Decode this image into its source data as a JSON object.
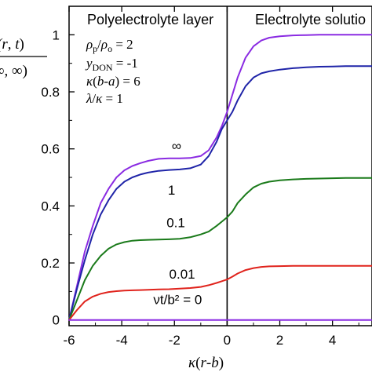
{
  "chart_data": {
    "type": "line",
    "title": "",
    "xlabel": "κ(r-b)",
    "ylabel": "(r, t)\n∞, ∞)",
    "xlim": [
      -6,
      5.5
    ],
    "ylim": [
      -0.02,
      1.1
    ],
    "xticks": [
      -6,
      -4,
      -2,
      0,
      2,
      4
    ],
    "xtick_labels": [
      "-6",
      "-4",
      "-2",
      "0",
      "2",
      "4"
    ],
    "yticks": [
      0,
      0.2,
      0.4,
      0.6,
      0.8,
      1
    ],
    "ytick_labels": [
      "0",
      "0.2",
      "0.4",
      "0.6",
      "0.8",
      "1"
    ],
    "grid": false,
    "regions": [
      "Polyelectrolyte layer",
      "Electrolyte solutio"
    ],
    "boundary_x": 0,
    "parameters": [
      "ρp/ρo = 2",
      "yDON = -1",
      "κ(b-a) = 6",
      "λ/κ = 1"
    ],
    "series": [
      {
        "name": "∞",
        "color": "#8a2be2",
        "x": [
          -6,
          -5.7,
          -5.4,
          -5.1,
          -4.8,
          -4.5,
          -4.2,
          -3.9,
          -3.6,
          -3.3,
          -3,
          -2.6,
          -2.2,
          -1.8,
          -1.4,
          -1,
          -0.7,
          -0.4,
          -0.2,
          0,
          0.2,
          0.4,
          0.7,
          1,
          1.3,
          1.6,
          2,
          2.5,
          3,
          3.5,
          4,
          4.5,
          5,
          5.5
        ],
        "y": [
          0,
          0.12,
          0.24,
          0.33,
          0.41,
          0.46,
          0.5,
          0.525,
          0.54,
          0.55,
          0.558,
          0.565,
          0.567,
          0.567,
          0.568,
          0.575,
          0.595,
          0.64,
          0.68,
          0.73,
          0.79,
          0.85,
          0.92,
          0.96,
          0.98,
          0.99,
          0.995,
          0.998,
          0.999,
          1.0,
          1.0,
          1.0,
          1.0,
          1.0
        ]
      },
      {
        "name": "1",
        "color": "#1f24a8",
        "x": [
          -6,
          -5.7,
          -5.4,
          -5.1,
          -4.8,
          -4.5,
          -4.2,
          -3.9,
          -3.6,
          -3.3,
          -3,
          -2.6,
          -2.2,
          -1.8,
          -1.4,
          -1,
          -0.7,
          -0.4,
          -0.2,
          0,
          0.2,
          0.4,
          0.7,
          1,
          1.3,
          1.6,
          2,
          2.5,
          3,
          3.5,
          4,
          4.5,
          5,
          5.5
        ],
        "y": [
          0,
          0.11,
          0.21,
          0.3,
          0.37,
          0.42,
          0.46,
          0.485,
          0.5,
          0.51,
          0.517,
          0.523,
          0.526,
          0.528,
          0.532,
          0.545,
          0.575,
          0.625,
          0.67,
          0.7,
          0.73,
          0.77,
          0.82,
          0.85,
          0.865,
          0.872,
          0.878,
          0.883,
          0.886,
          0.888,
          0.889,
          0.89,
          0.89,
          0.89
        ]
      },
      {
        "name": "0.1",
        "color": "#1a7a1a",
        "x": [
          -6,
          -5.7,
          -5.4,
          -5.1,
          -4.8,
          -4.5,
          -4.2,
          -3.9,
          -3.6,
          -3.3,
          -3,
          -2.6,
          -2.2,
          -1.8,
          -1.4,
          -1,
          -0.7,
          -0.4,
          -0.2,
          0,
          0.2,
          0.4,
          0.7,
          1,
          1.3,
          1.6,
          2,
          2.5,
          3,
          3.5,
          4,
          4.5,
          5,
          5.5
        ],
        "y": [
          0,
          0.07,
          0.14,
          0.19,
          0.225,
          0.25,
          0.265,
          0.273,
          0.278,
          0.28,
          0.281,
          0.282,
          0.283,
          0.285,
          0.29,
          0.3,
          0.31,
          0.33,
          0.345,
          0.36,
          0.38,
          0.41,
          0.44,
          0.465,
          0.478,
          0.485,
          0.49,
          0.493,
          0.495,
          0.496,
          0.497,
          0.498,
          0.498,
          0.498
        ]
      },
      {
        "name": "0.01",
        "color": "#e0231c",
        "x": [
          -6,
          -5.7,
          -5.4,
          -5.1,
          -4.8,
          -4.5,
          -4.2,
          -3.9,
          -3.6,
          -3.3,
          -3,
          -2.6,
          -2.2,
          -1.8,
          -1.4,
          -1,
          -0.7,
          -0.4,
          -0.2,
          0,
          0.2,
          0.4,
          0.7,
          1,
          1.3,
          1.6,
          2,
          2.5,
          3,
          3.5,
          4,
          4.5,
          5,
          5.5
        ],
        "y": [
          0,
          0.035,
          0.065,
          0.082,
          0.092,
          0.098,
          0.101,
          0.103,
          0.104,
          0.105,
          0.106,
          0.107,
          0.108,
          0.11,
          0.112,
          0.116,
          0.122,
          0.13,
          0.136,
          0.142,
          0.152,
          0.163,
          0.175,
          0.182,
          0.186,
          0.188,
          0.189,
          0.19,
          0.19,
          0.19,
          0.19,
          0.19,
          0.19,
          0.19
        ]
      },
      {
        "name": "νt/b² = 0",
        "color": "#8a2be2",
        "x": [
          -6,
          5.5
        ],
        "y": [
          0,
          0
        ]
      }
    ],
    "curve_labels": [
      {
        "text": "∞",
        "x": -2.1,
        "y": 0.595
      },
      {
        "text": "1",
        "x": -2.25,
        "y": 0.44
      },
      {
        "text": "0.1",
        "x": -2.3,
        "y": 0.325
      },
      {
        "text": "0.01",
        "x": -2.2,
        "y": 0.145
      },
      {
        "text": "νt/b² = 0",
        "x": -2.8,
        "y": 0.055
      }
    ]
  }
}
